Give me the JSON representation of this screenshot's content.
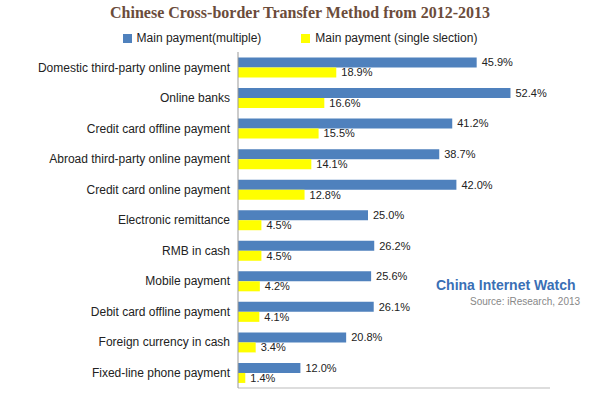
{
  "chart_data": {
    "type": "bar",
    "orientation": "horizontal",
    "title": "Chinese Cross-border Transfer Method from 2012-2013",
    "categories": [
      "Domestic third-party online payment",
      "Online banks",
      "Credit card offline payment",
      "Abroad third-party online payment",
      "Credit card online payment",
      "Electronic remittance",
      "RMB in cash",
      "Mobile payment",
      "Debit card offline payment",
      "Foreign currency in cash",
      "Fixed-line phone payment"
    ],
    "series": [
      {
        "name": "Main payment(multiple)",
        "color": "#4f81bd",
        "values": [
          45.9,
          52.4,
          41.2,
          38.7,
          42.0,
          25.0,
          26.2,
          25.6,
          26.1,
          20.8,
          12.0
        ],
        "value_labels": [
          "45.9%",
          "52.4%",
          "41.2%",
          "38.7%",
          "42.0%",
          "25.0%",
          "26.2%",
          "25.6%",
          "26.1%",
          "20.8%",
          "12.0%"
        ]
      },
      {
        "name": "Main payment (single slection)",
        "color": "#ffff00",
        "values": [
          18.9,
          16.6,
          15.5,
          14.1,
          12.8,
          4.5,
          4.5,
          4.2,
          4.1,
          3.4,
          1.4
        ],
        "value_labels": [
          "18.9%",
          "16.6%",
          "15.5%",
          "14.1%",
          "12.8%",
          "4.5%",
          "4.5%",
          "4.2%",
          "4.1%",
          "3.4%",
          "1.4%"
        ]
      }
    ],
    "xlim": [
      0,
      60
    ],
    "grid": false,
    "legend": "top",
    "data_labels": true,
    "tick_labels": "y",
    "annotations": [
      "China Internet Watch",
      "Source: iResearch, 2013"
    ]
  }
}
